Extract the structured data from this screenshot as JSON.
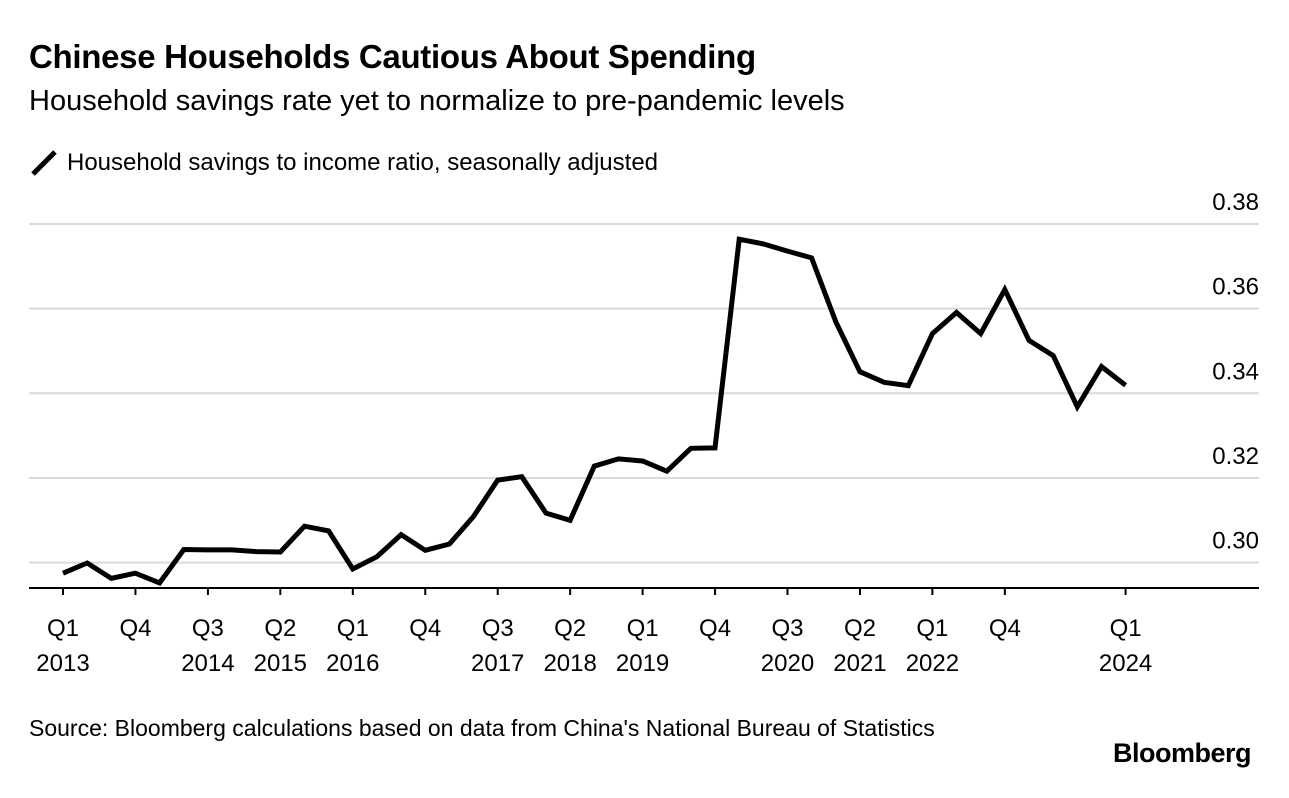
{
  "title": "Chinese Households Cautious About Spending",
  "subtitle": "Household savings rate yet to normalize to pre-pandemic levels",
  "source": "Source: Bloomberg calculations based on data from China's National Bureau of Statistics",
  "brand": "Bloomberg",
  "colors": {
    "line": "#000000",
    "grid": "#d9d9d9",
    "axis": "#000000"
  },
  "chart_data": {
    "type": "line",
    "title": "Chinese Households Cautious About Spending",
    "subtitle": "Household savings rate yet to normalize to pre-pandemic levels",
    "xlabel": "",
    "ylabel": "",
    "ylim": [
      0.294,
      0.38
    ],
    "yticks": [
      0.3,
      0.32,
      0.34,
      0.36,
      0.38
    ],
    "ytick_labels": [
      "0.30",
      "0.32",
      "0.34",
      "0.36",
      "0.38"
    ],
    "grid": true,
    "legend_position": "top-left",
    "series": [
      {
        "name": "Household savings to income ratio, seasonally adjusted",
        "x": [
          "2013 Q1",
          "2013 Q2",
          "2013 Q3",
          "2013 Q4",
          "2014 Q1",
          "2014 Q2",
          "2014 Q3",
          "2014 Q4",
          "2015 Q1",
          "2015 Q2",
          "2015 Q3",
          "2015 Q4",
          "2016 Q1",
          "2016 Q2",
          "2016 Q3",
          "2016 Q4",
          "2017 Q1",
          "2017 Q2",
          "2017 Q3",
          "2017 Q4",
          "2018 Q1",
          "2018 Q2",
          "2018 Q3",
          "2018 Q4",
          "2019 Q1",
          "2019 Q2",
          "2019 Q3",
          "2019 Q4",
          "2020 Q1",
          "2020 Q2",
          "2020 Q3",
          "2020 Q4",
          "2021 Q1",
          "2021 Q2",
          "2021 Q3",
          "2021 Q4",
          "2022 Q1",
          "2022 Q2",
          "2022 Q3",
          "2022 Q4",
          "2023 Q1",
          "2023 Q2",
          "2023 Q3",
          "2023 Q4",
          "2024 Q1"
        ],
        "values": [
          0.2975,
          0.2999,
          0.2963,
          0.2975,
          0.2952,
          0.3031,
          0.303,
          0.303,
          0.3026,
          0.3025,
          0.3086,
          0.3075,
          0.2985,
          0.3014,
          0.3066,
          0.3029,
          0.3044,
          0.3109,
          0.3195,
          0.3203,
          0.3117,
          0.31,
          0.3228,
          0.3245,
          0.324,
          0.3216,
          0.327,
          0.3271,
          0.3764,
          0.3753,
          0.3736,
          0.372,
          0.3569,
          0.3451,
          0.3426,
          0.3418,
          0.3541,
          0.3591,
          0.3541,
          0.3645,
          0.3525,
          0.3489,
          0.3368,
          0.3463,
          0.3419
        ]
      }
    ],
    "x_ticks": [
      {
        "index": 0,
        "label": "Q1",
        "year": "2013"
      },
      {
        "index": 3,
        "label": "Q4",
        "year": ""
      },
      {
        "index": 6,
        "label": "Q3",
        "year": "2014"
      },
      {
        "index": 9,
        "label": "Q2",
        "year": "2015"
      },
      {
        "index": 12,
        "label": "Q1",
        "year": "2016"
      },
      {
        "index": 15,
        "label": "Q4",
        "year": ""
      },
      {
        "index": 18,
        "label": "Q3",
        "year": "2017"
      },
      {
        "index": 21,
        "label": "Q2",
        "year": "2018"
      },
      {
        "index": 24,
        "label": "Q1",
        "year": "2019"
      },
      {
        "index": 27,
        "label": "Q4",
        "year": ""
      },
      {
        "index": 30,
        "label": "Q3",
        "year": "2020"
      },
      {
        "index": 33,
        "label": "Q2",
        "year": "2021"
      },
      {
        "index": 36,
        "label": "Q1",
        "year": "2022"
      },
      {
        "index": 39,
        "label": "Q4",
        "year": ""
      },
      {
        "index": 44,
        "label": "Q1",
        "year": "2024"
      }
    ]
  }
}
